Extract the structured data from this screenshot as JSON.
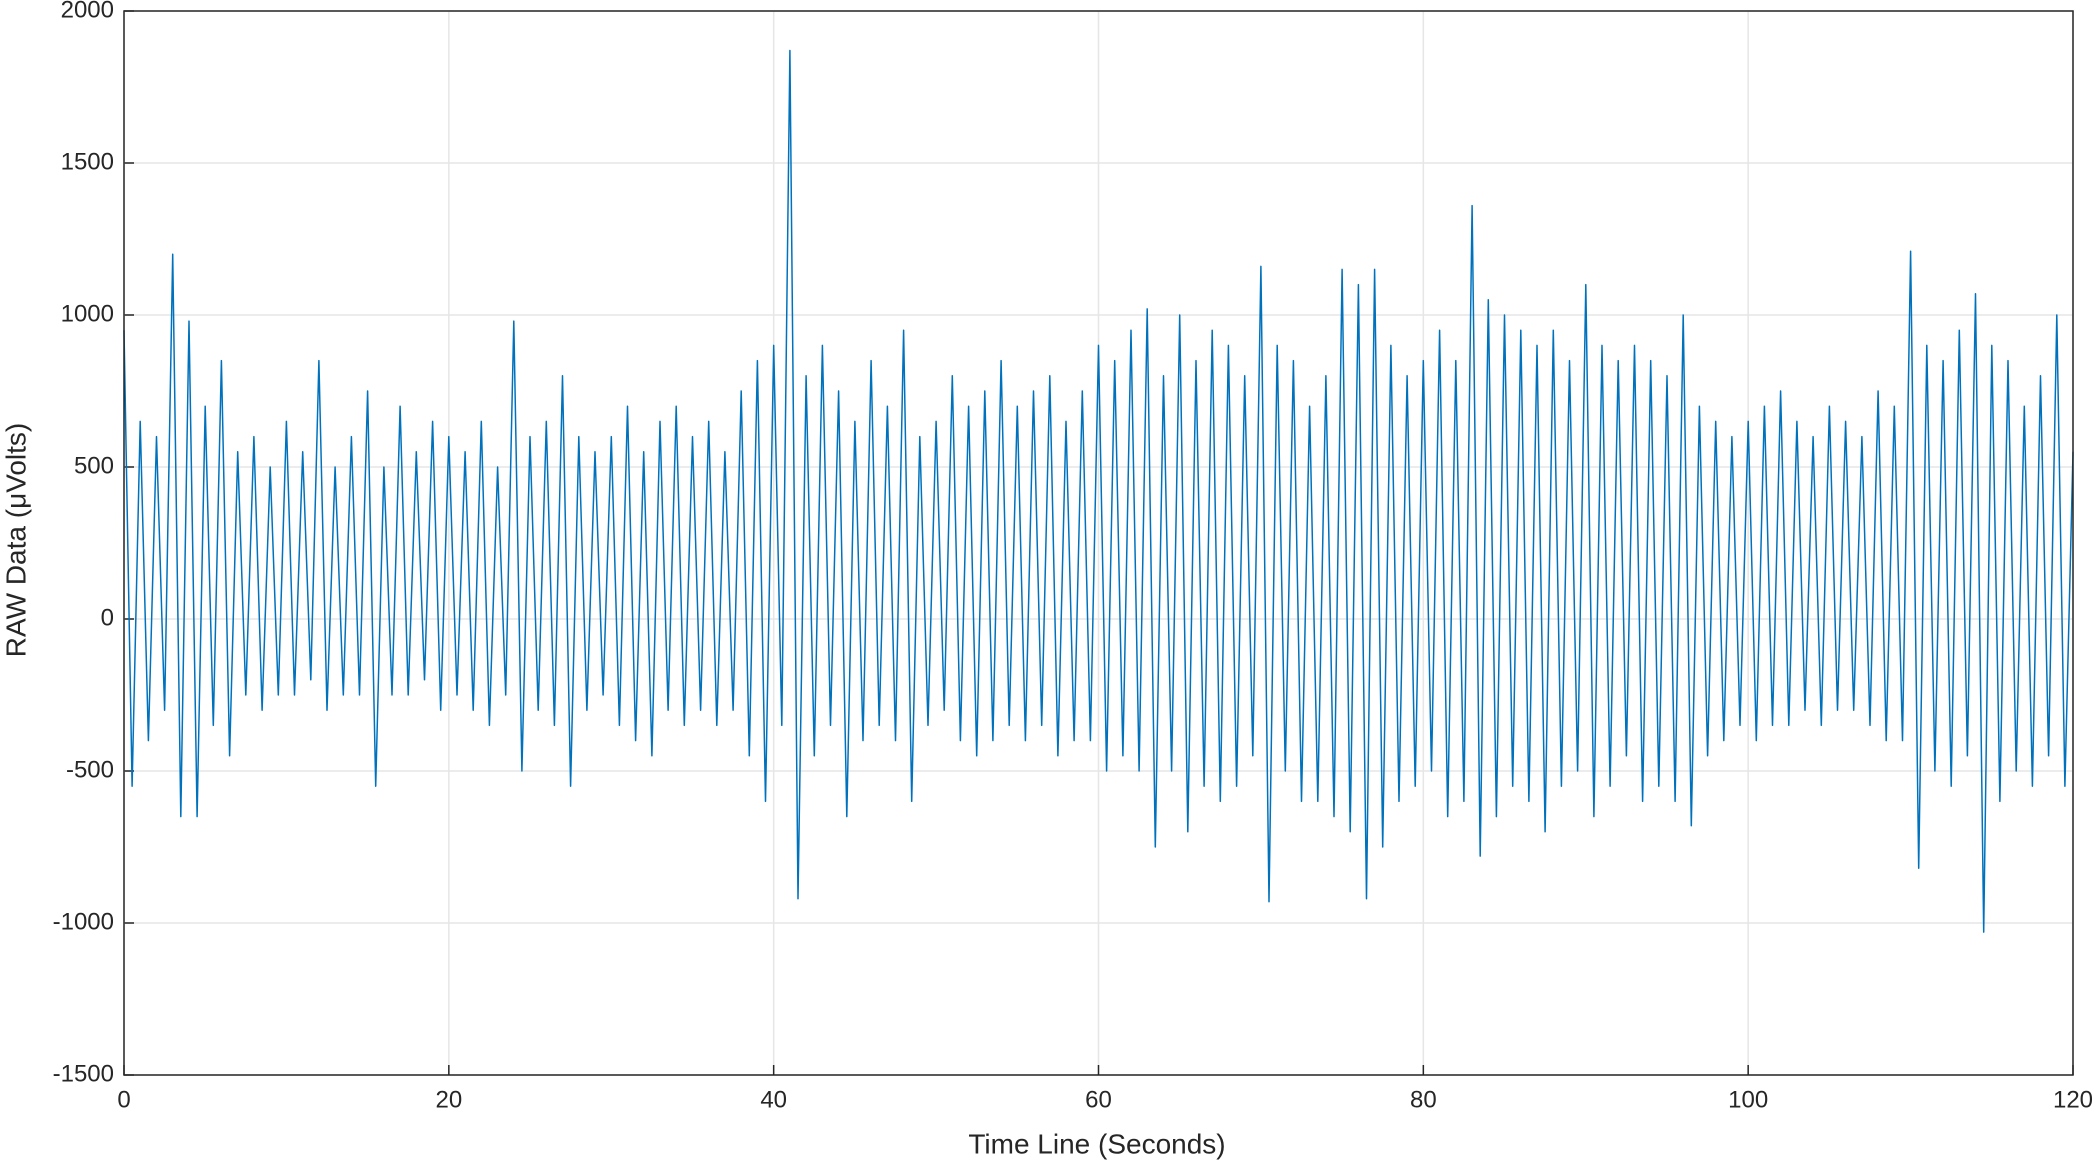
{
  "chart_data": {
    "type": "line",
    "x_label": "Time Line (Seconds)",
    "y_label": "RAW Data (μVolts)",
    "x": [
      0,
      0.5,
      1,
      1.5,
      2,
      2.5,
      3,
      3.5,
      4,
      4.5,
      5,
      5.5,
      6,
      6.5,
      7,
      7.5,
      8,
      8.5,
      9,
      9.5,
      10,
      10.5,
      11,
      11.5,
      12,
      12.5,
      13,
      13.5,
      14,
      14.5,
      15,
      15.5,
      16,
      16.5,
      17,
      17.5,
      18,
      18.5,
      19,
      19.5,
      20,
      20.5,
      21,
      21.5,
      22,
      22.5,
      23,
      23.5,
      24,
      24.5,
      25,
      25.5,
      26,
      26.5,
      27,
      27.5,
      28,
      28.5,
      29,
      29.5,
      30,
      30.5,
      31,
      31.5,
      32,
      32.5,
      33,
      33.5,
      34,
      34.5,
      35,
      35.5,
      36,
      36.5,
      37,
      37.5,
      38,
      38.5,
      39,
      39.5,
      40,
      40.5,
      41,
      41.5,
      42,
      42.5,
      43,
      43.5,
      44,
      44.5,
      45,
      45.5,
      46,
      46.5,
      47,
      47.5,
      48,
      48.5,
      49,
      49.5,
      50,
      50.5,
      51,
      51.5,
      52,
      52.5,
      53,
      53.5,
      54,
      54.5,
      55,
      55.5,
      56,
      56.5,
      57,
      57.5,
      58,
      58.5,
      59,
      59.5,
      60,
      60.5,
      61,
      61.5,
      62,
      62.5,
      63,
      63.5,
      64,
      64.5,
      65,
      65.5,
      66,
      66.5,
      67,
      67.5,
      68,
      68.5,
      69,
      69.5,
      70,
      70.5,
      71,
      71.5,
      72,
      72.5,
      73,
      73.5,
      74,
      74.5,
      75,
      75.5,
      76,
      76.5,
      77,
      77.5,
      78,
      78.5,
      79,
      79.5,
      80,
      80.5,
      81,
      81.5,
      82,
      82.5,
      83,
      83.5,
      84,
      84.5,
      85,
      85.5,
      86,
      86.5,
      87,
      87.5,
      88,
      88.5,
      89,
      89.5,
      90,
      90.5,
      91,
      91.5,
      92,
      92.5,
      93,
      93.5,
      94,
      94.5,
      95,
      95.5,
      96,
      96.5,
      97,
      97.5,
      98,
      98.5,
      99,
      99.5,
      100,
      100.5,
      101,
      101.5,
      102,
      102.5,
      103,
      103.5,
      104,
      104.5,
      105,
      105.5,
      106,
      106.5,
      107,
      107.5,
      108,
      108.5,
      109,
      109.5,
      110,
      110.5,
      111,
      111.5,
      112,
      112.5,
      113,
      113.5,
      114,
      114.5,
      115,
      115.5,
      116,
      116.5,
      117,
      117.5,
      118,
      118.5,
      119,
      119.5,
      120
    ],
    "series": [
      {
        "color": "#0072bd",
        "values": [
          950,
          -550,
          650,
          -400,
          600,
          -300,
          1200,
          -650,
          980,
          -650,
          700,
          -350,
          850,
          -450,
          550,
          -250,
          600,
          -300,
          500,
          -250,
          650,
          -250,
          550,
          -200,
          850,
          -300,
          500,
          -250,
          600,
          -250,
          750,
          -550,
          500,
          -250,
          700,
          -250,
          550,
          -200,
          650,
          -300,
          600,
          -250,
          550,
          -300,
          650,
          -350,
          500,
          -250,
          980,
          -500,
          600,
          -300,
          650,
          -350,
          800,
          -550,
          600,
          -300,
          550,
          -250,
          600,
          -350,
          700,
          -400,
          550,
          -450,
          650,
          -300,
          700,
          -350,
          600,
          -300,
          650,
          -350,
          550,
          -300,
          750,
          -450,
          850,
          -600,
          900,
          -350,
          1870,
          -920,
          800,
          -450,
          900,
          -350,
          750,
          -650,
          650,
          -400,
          850,
          -350,
          700,
          -400,
          950,
          -600,
          600,
          -350,
          650,
          -300,
          800,
          -400,
          700,
          -450,
          750,
          -400,
          850,
          -350,
          700,
          -400,
          750,
          -350,
          800,
          -450,
          650,
          -400,
          750,
          -400,
          900,
          -500,
          850,
          -450,
          950,
          -500,
          1020,
          -750,
          800,
          -500,
          1000,
          -700,
          850,
          -550,
          950,
          -600,
          900,
          -550,
          800,
          -450,
          1160,
          -930,
          900,
          -500,
          850,
          -600,
          700,
          -600,
          800,
          -650,
          1150,
          -700,
          1100,
          -920,
          1150,
          -750,
          900,
          -600,
          800,
          -550,
          850,
          -500,
          950,
          -650,
          850,
          -600,
          1360,
          -780,
          1050,
          -650,
          1000,
          -550,
          950,
          -600,
          900,
          -700,
          950,
          -550,
          850,
          -500,
          1100,
          -650,
          900,
          -550,
          850,
          -450,
          900,
          -600,
          850,
          -550,
          800,
          -600,
          1000,
          -680,
          700,
          -450,
          650,
          -400,
          600,
          -350,
          650,
          -400,
          700,
          -350,
          750,
          -350,
          650,
          -300,
          600,
          -350,
          700,
          -300,
          650,
          -300,
          600,
          -350,
          750,
          -400,
          700,
          -400,
          1210,
          -820,
          900,
          -500,
          850,
          -550,
          950,
          -450,
          1070,
          -1030,
          900,
          -600,
          850,
          -500,
          700,
          -550,
          800,
          -450,
          1000,
          -550,
          550
        ]
      }
    ],
    "xlim": [
      0,
      120
    ],
    "xticks": [
      0,
      20,
      40,
      60,
      80,
      100,
      120
    ],
    "ylim": [
      -1500,
      2000
    ],
    "yticks": [
      -1500,
      -1000,
      -500,
      0,
      500,
      1000,
      1500,
      2000
    ],
    "grid": true
  }
}
